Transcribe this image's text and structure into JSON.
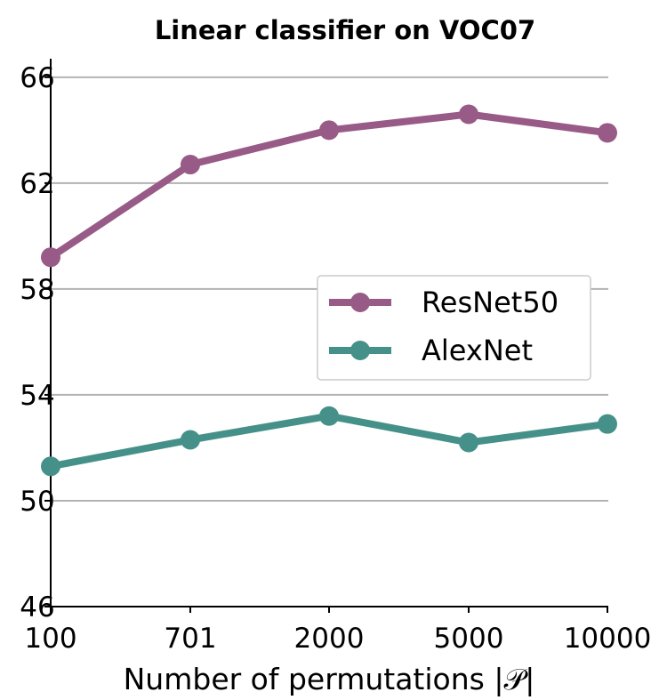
{
  "chart_data": {
    "type": "line",
    "title": "Linear classifier on VOC07",
    "xlabel": "Number of permutations |𝒫|",
    "ylabel": "",
    "categories": [
      "100",
      "701",
      "2000",
      "5000",
      "10000"
    ],
    "ylim": [
      46,
      66.7
    ],
    "yticks": [
      "46",
      "50",
      "54",
      "58",
      "62",
      "66"
    ],
    "grid": "horizontal",
    "legend": "right",
    "series": [
      {
        "name": "ResNet50",
        "color": "#985a86",
        "values": [
          59.2,
          62.7,
          64.0,
          64.6,
          63.9
        ]
      },
      {
        "name": "AlexNet",
        "color": "#459189",
        "values": [
          51.3,
          52.3,
          53.2,
          52.2,
          52.9
        ]
      }
    ]
  }
}
